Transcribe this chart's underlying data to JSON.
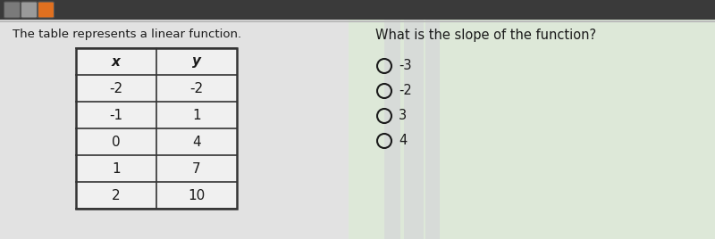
{
  "description_text": "The table represents a linear function.",
  "question_text": "What is the slope of the function?",
  "table_headers": [
    "x",
    "y"
  ],
  "table_rows": [
    [
      "-2",
      "-2"
    ],
    [
      "-1",
      "1"
    ],
    [
      "0",
      "4"
    ],
    [
      "1",
      "7"
    ],
    [
      "2",
      "10"
    ]
  ],
  "choices": [
    "-3",
    "-2",
    "3",
    "4"
  ],
  "bg_color": "#e0e0e0",
  "main_bg": "#e8e8e8",
  "text_color": "#1a1a1a",
  "topbar_bg": "#3a3a3a",
  "sq_colors": [
    "#7a7a7a",
    "#9a9a9a",
    "#e07020"
  ],
  "table_bg": "#f0f0f0",
  "table_border": "#333333",
  "right_green": "#c8dcc0",
  "right_purple": "#d8cce0"
}
